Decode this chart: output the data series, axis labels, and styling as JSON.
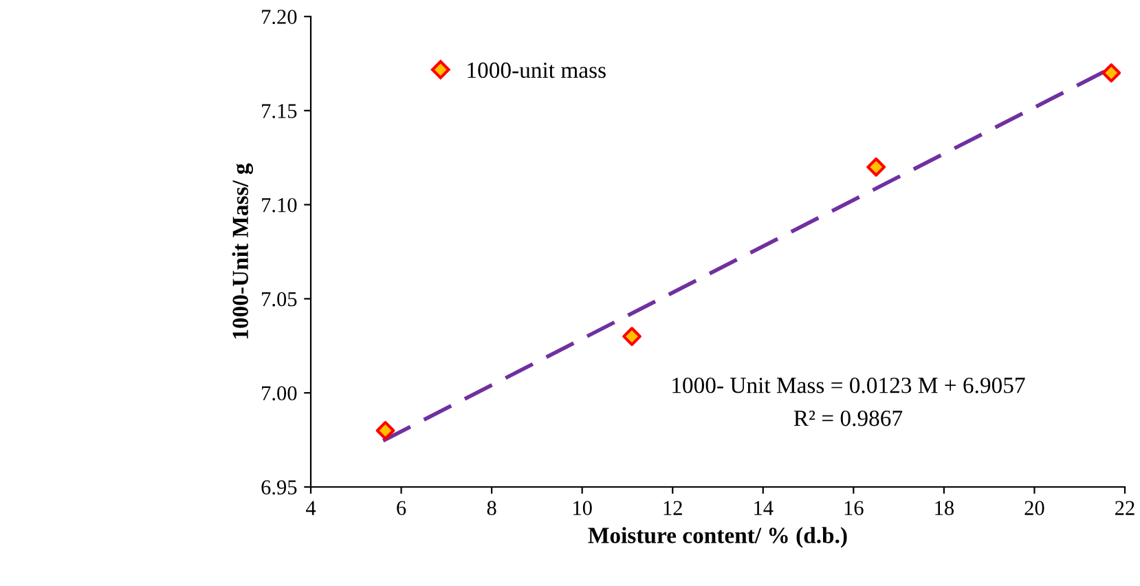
{
  "chart_data": {
    "type": "scatter",
    "xlabel": "Moisture content/ % (d.b.)",
    "ylabel": "1000-Unit Mass/ g",
    "xlim": [
      4,
      22
    ],
    "xticks": [
      4,
      6,
      8,
      10,
      12,
      14,
      16,
      18,
      20,
      22
    ],
    "ylim": [
      6.95,
      7.2
    ],
    "yticks": [
      {
        "value": 6.95,
        "label": "6.95"
      },
      {
        "value": 7.0,
        "label": "7.00"
      },
      {
        "value": 7.05,
        "label": "7.05"
      },
      {
        "value": 7.1,
        "label": "7.10"
      },
      {
        "value": 7.15,
        "label": "7.15"
      },
      {
        "value": 7.2,
        "label": "7.20"
      }
    ],
    "series": [
      {
        "name": "1000-unit mass",
        "color": "#ff0000",
        "x": [
          5.65,
          11.1,
          16.5,
          21.7
        ],
        "values": [
          6.98,
          7.03,
          7.12,
          7.17
        ],
        "marker": "diamond"
      },
      {
        "type": "line",
        "color": "#7030a0",
        "x": [
          5.6,
          21.7
        ],
        "values": [
          6.9746,
          7.1726
        ],
        "line_style": "dashed",
        "marker": "none"
      }
    ],
    "annotations": [
      "1000- Unit Mass = 0.0123 M + 6.9057",
      "R² = 0.9867"
    ],
    "legend": "top left",
    "grid": false
  }
}
